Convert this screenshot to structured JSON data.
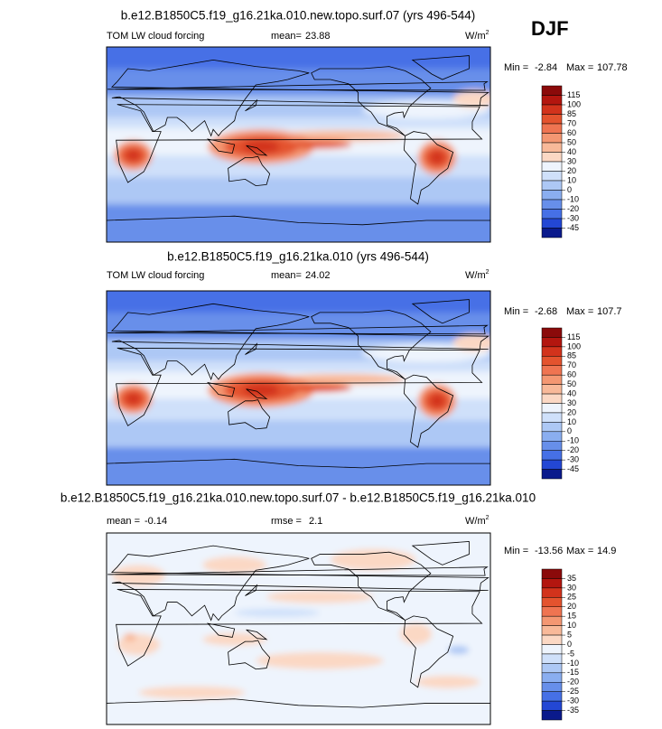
{
  "header": {
    "season": "DJF"
  },
  "panels": [
    {
      "title": "b.e12.B1850C5.f19_g16.21ka.010.new.topo.surf.07 (yrs 496-544)",
      "subtitle": "TOM LW cloud forcing",
      "mean_label": "mean=",
      "mean": 23.88,
      "unit": "W/m",
      "unit_exp": "2",
      "min_label": "Min =",
      "min": -2.84,
      "max_label": "Max =",
      "max": 107.78,
      "levels": [
        115,
        100,
        85,
        70,
        60,
        50,
        40,
        30,
        20,
        10,
        0,
        -10,
        -20,
        -30,
        -45
      ],
      "colors": [
        "#8b0a0a",
        "#b3160f",
        "#d2331c",
        "#e4532e",
        "#ef7451",
        "#f49772",
        "#f8b999",
        "#fbd8c4",
        "#eef4fd",
        "#cfe0fa",
        "#adc8f5",
        "#8aaef0",
        "#678fea",
        "#4670e6",
        "#2347d4",
        "#0a1a8c"
      ]
    },
    {
      "title": "b.e12.B1850C5.f19_g16.21ka.010 (yrs 496-544)",
      "subtitle": "TOM LW cloud forcing",
      "mean_label": "mean=",
      "mean": 24.02,
      "unit": "W/m",
      "unit_exp": "2",
      "min_label": "Min =",
      "min": -2.68,
      "max_label": "Max =",
      "max": 107.7,
      "levels": [
        115,
        100,
        85,
        70,
        60,
        50,
        40,
        30,
        20,
        10,
        0,
        -10,
        -20,
        -30,
        -45
      ],
      "colors": [
        "#8b0a0a",
        "#b3160f",
        "#d2331c",
        "#e4532e",
        "#ef7451",
        "#f49772",
        "#f8b999",
        "#fbd8c4",
        "#eef4fd",
        "#cfe0fa",
        "#adc8f5",
        "#8aaef0",
        "#678fea",
        "#4670e6",
        "#2347d4",
        "#0a1a8c"
      ]
    },
    {
      "title": "b.e12.B1850C5.f19_g16.21ka.010.new.topo.surf.07 - b.e12.B1850C5.f19_g16.21ka.010",
      "mean_label": "mean =",
      "mean": -0.14,
      "rmse_label": "rmse =",
      "rmse": 2.1,
      "unit": "W/m",
      "unit_exp": "2",
      "min_label": "Min =",
      "min": -13.56,
      "max_label": "Max =",
      "max": 14.9,
      "levels": [
        35,
        30,
        25,
        20,
        15,
        10,
        5,
        0,
        -5,
        -10,
        -15,
        -20,
        -25,
        -30,
        -35
      ],
      "colors": [
        "#8b0a0a",
        "#b3160f",
        "#d2331c",
        "#e4532e",
        "#ef7451",
        "#f49772",
        "#f8b999",
        "#fbd8c4",
        "#eef4fd",
        "#cfe0fa",
        "#adc8f5",
        "#8aaef0",
        "#678fea",
        "#4670e6",
        "#2347d4",
        "#0a1a8c"
      ]
    }
  ]
}
